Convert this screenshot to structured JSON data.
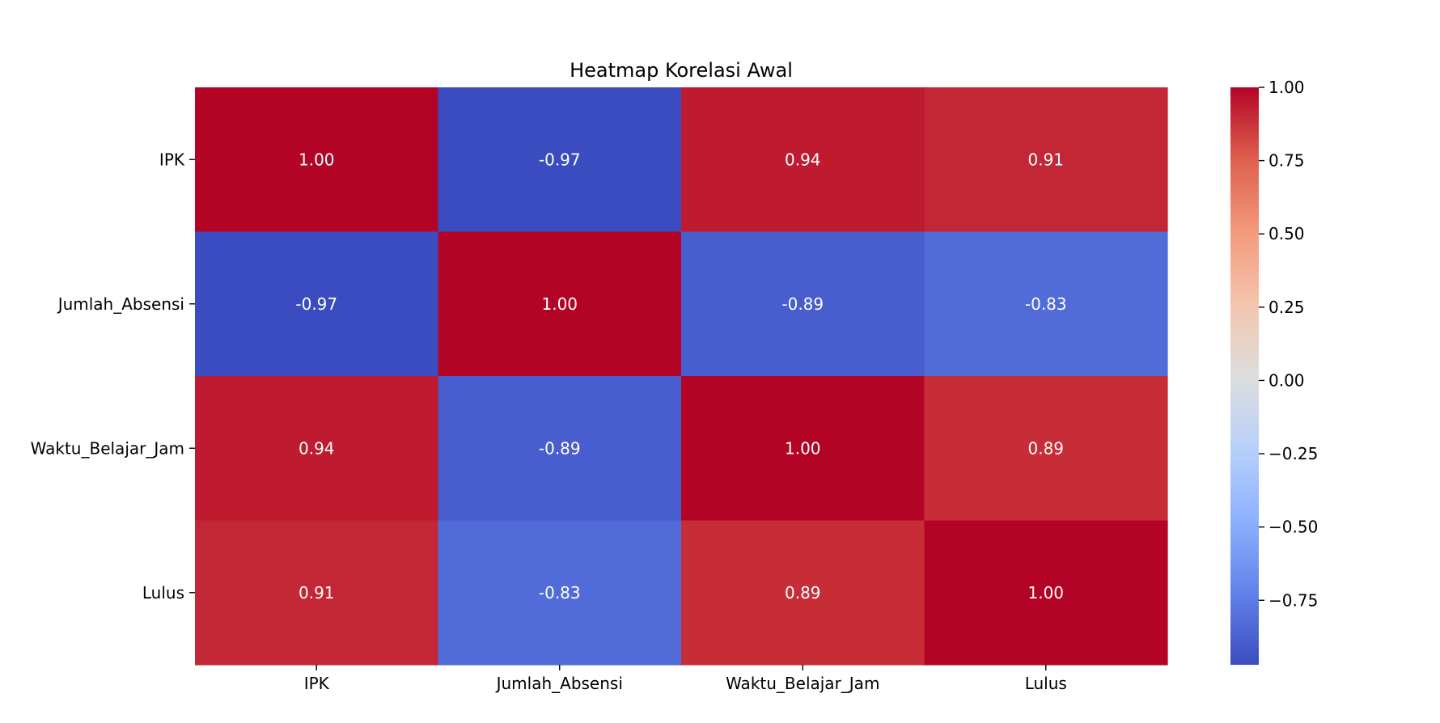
{
  "chart_data": {
    "type": "heatmap",
    "title": "Heatmap Korelasi Awal",
    "xlabel": "",
    "ylabel": "",
    "x_categories": [
      "IPK",
      "Jumlah_Absensi",
      "Waktu_Belajar_Jam",
      "Lulus"
    ],
    "y_categories": [
      "IPK",
      "Jumlah_Absensi",
      "Waktu_Belajar_Jam",
      "Lulus"
    ],
    "values": [
      [
        1.0,
        -0.97,
        0.94,
        0.91
      ],
      [
        -0.97,
        1.0,
        -0.89,
        -0.83
      ],
      [
        0.94,
        -0.89,
        1.0,
        0.89
      ],
      [
        0.91,
        -0.83,
        0.89,
        1.0
      ]
    ],
    "annotation_format": "2 decimals",
    "colormap": "coolwarm",
    "colorbar": {
      "range": [
        -0.97,
        1.0
      ],
      "ticks": [
        -0.75,
        -0.5,
        -0.25,
        0.0,
        0.25,
        0.5,
        0.75,
        1.0
      ],
      "tick_labels": [
        "−0.75",
        "−0.50",
        "−0.25",
        "0.00",
        "0.25",
        "0.50",
        "0.75",
        "1.00"
      ],
      "placement": "right"
    },
    "grid": false,
    "annotation_color": "#ffffff",
    "low_color": "#3b4cc0",
    "high_color": "#b40426"
  }
}
